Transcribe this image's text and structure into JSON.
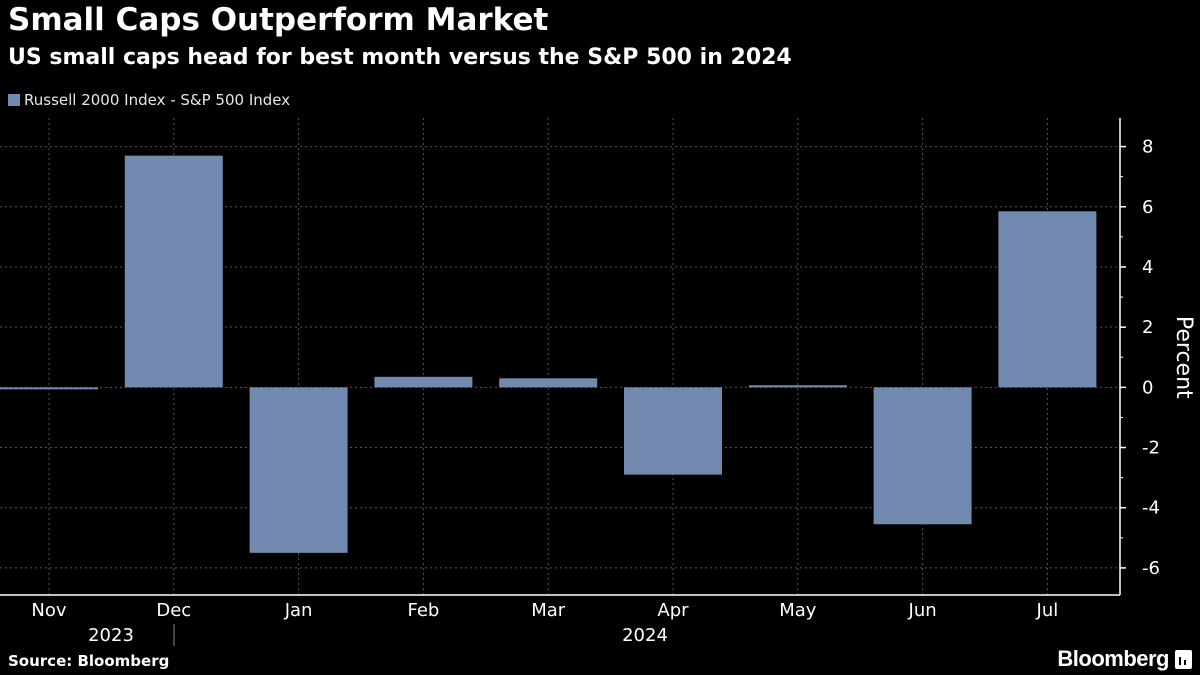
{
  "title": "Small Caps Outperform Market",
  "subtitle": "US small caps head for best month versus the S&P 500 in 2024",
  "source": "Source: Bloomberg",
  "brand": "Bloomberg",
  "brand_icon": "bloomberg-terminal-icon",
  "colors": {
    "background": "#000000",
    "bar": "#7289b0",
    "grid": "#555555",
    "axis": "#ffffff",
    "text": "#ffffff"
  },
  "chart_data": {
    "type": "bar",
    "title": "Small Caps Outperform Market",
    "subtitle": "US small caps head for best month versus the S&P 500 in 2024",
    "categories": [
      "Nov",
      "Dec",
      "Jan",
      "Feb",
      "Mar",
      "Apr",
      "May",
      "Jun",
      "Jul"
    ],
    "year_labels": [
      {
        "label": "2023",
        "category": "Dec"
      },
      {
        "label": "2024",
        "category": "Apr"
      }
    ],
    "series": [
      {
        "name": "Russell 2000 Index - S&P 500 Index",
        "values": [
          -0.05,
          7.7,
          -5.5,
          0.35,
          0.3,
          -2.9,
          0.07,
          -4.55,
          5.85
        ]
      }
    ],
    "ylabel": "Percent",
    "xlabel": "",
    "ylim": [
      -6.9,
      8.95
    ],
    "yticks": [
      8,
      6,
      4,
      2,
      0,
      -2,
      -4,
      -6
    ],
    "ytick_labels": [
      "8",
      "6",
      "4",
      "2",
      "0",
      "-2",
      "-4",
      "-6"
    ],
    "y_axis_position": "right",
    "legend": "top-left",
    "grid": true
  }
}
